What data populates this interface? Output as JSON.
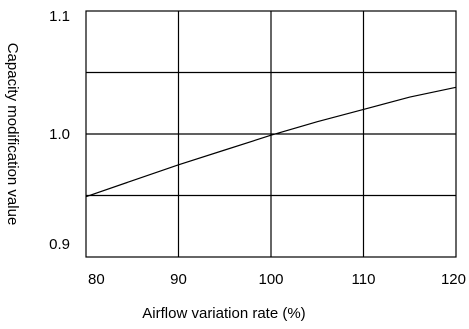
{
  "chart_data": {
    "type": "line",
    "xlabel": "Airflow variation rate (%)",
    "ylabel": "Capacity modification value",
    "xlim": [
      80,
      120
    ],
    "ylim": [
      0.9,
      1.1
    ],
    "x_ticks": [
      "80",
      "90",
      "100",
      "110",
      "120"
    ],
    "y_ticks": [
      "1.1",
      "1.0",
      "0.9"
    ],
    "x_tick_values": [
      80,
      90,
      100,
      110,
      120
    ],
    "y_tick_values": [
      1.1,
      1.0,
      0.9
    ],
    "grid": true,
    "horizontal_gridlines": [
      1.05,
      1.0,
      0.95
    ],
    "series": [
      {
        "x": [
          80,
          85,
          90,
          95,
          100,
          105,
          110,
          115,
          120
        ],
        "y": [
          0.949,
          0.962,
          0.975,
          0.987,
          0.999,
          1.01,
          1.02,
          1.03,
          1.038
        ]
      }
    ]
  }
}
